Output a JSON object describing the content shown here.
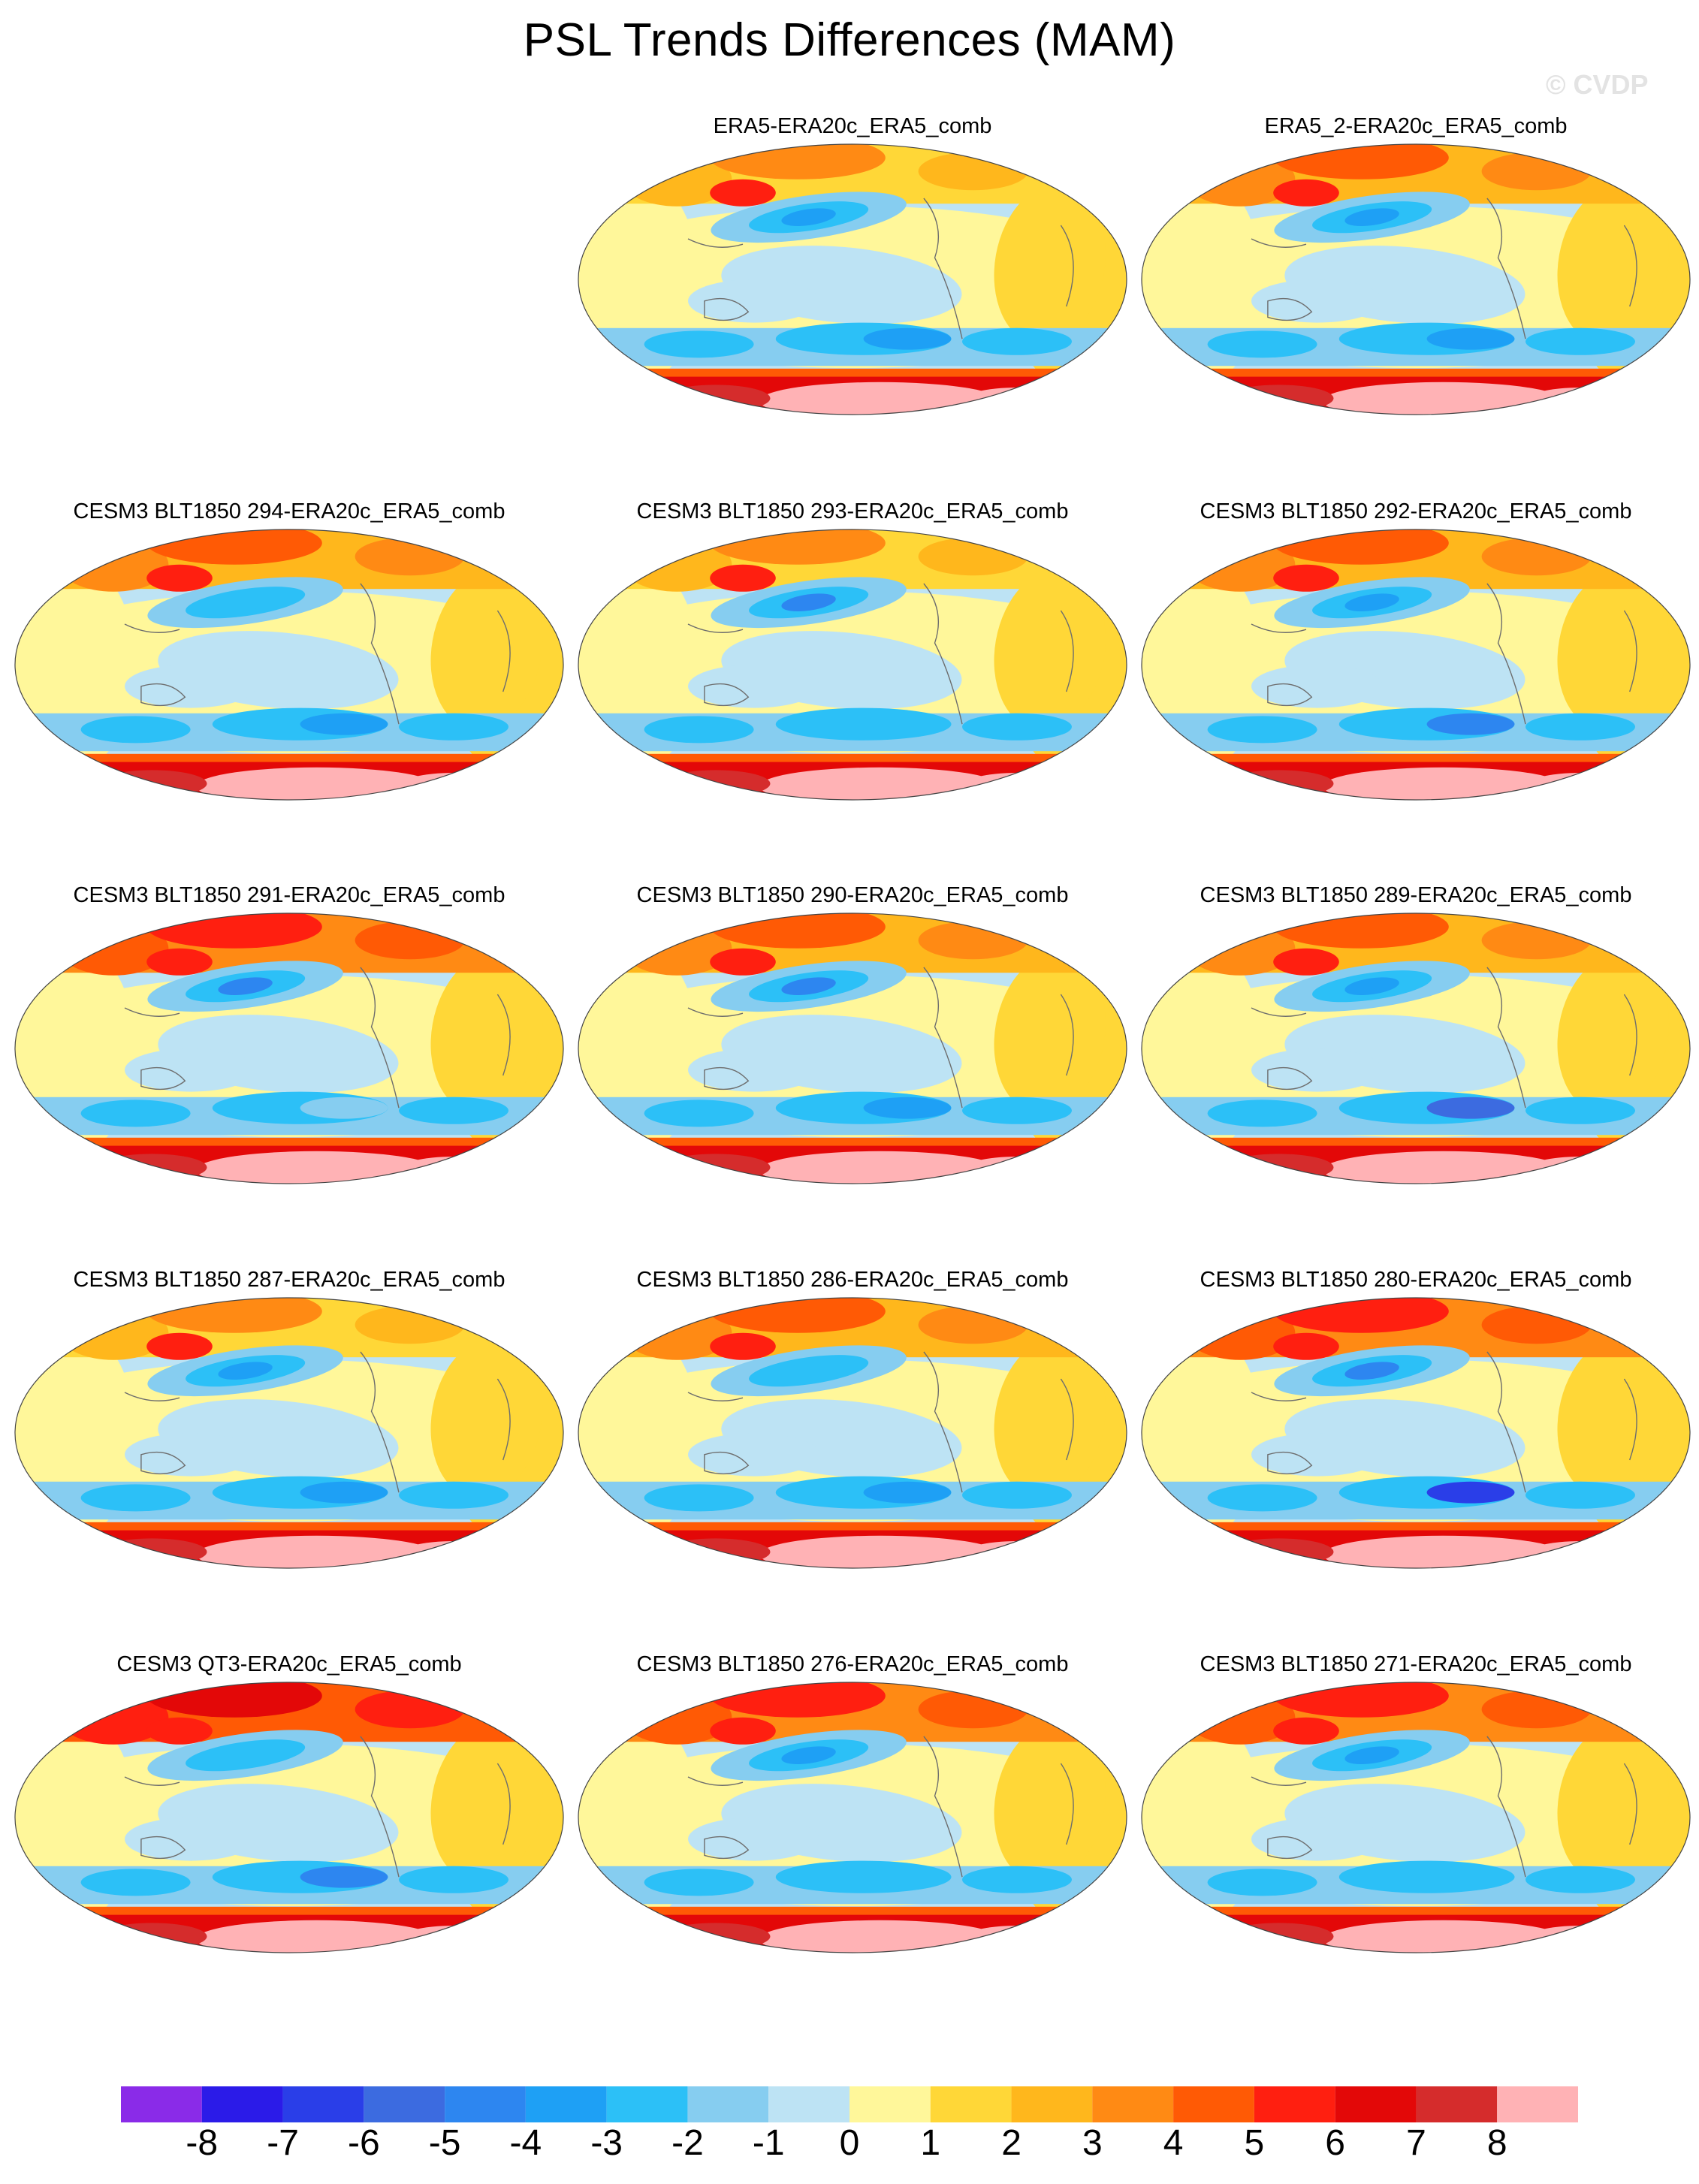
{
  "title": "PSL Trends Differences (MAM)",
  "watermark": "© CVDP",
  "panels": [
    {
      "label": "ERA5-ERA20c_ERA5_comb",
      "row": 0,
      "col": 1,
      "variant": 0
    },
    {
      "label": "ERA5_2-ERA20c_ERA5_comb",
      "row": 0,
      "col": 2,
      "variant": 1
    },
    {
      "label": "CESM3 BLT1850 294-ERA20c_ERA5_comb",
      "row": 1,
      "col": 0,
      "variant": 2
    },
    {
      "label": "CESM3 BLT1850 293-ERA20c_ERA5_comb",
      "row": 1,
      "col": 1,
      "variant": 3
    },
    {
      "label": "CESM3 BLT1850 292-ERA20c_ERA5_comb",
      "row": 1,
      "col": 2,
      "variant": 4
    },
    {
      "label": "CESM3 BLT1850 291-ERA20c_ERA5_comb",
      "row": 2,
      "col": 0,
      "variant": 5
    },
    {
      "label": "CESM3 BLT1850 290-ERA20c_ERA5_comb",
      "row": 2,
      "col": 1,
      "variant": 6
    },
    {
      "label": "CESM3 BLT1850 289-ERA20c_ERA5_comb",
      "row": 2,
      "col": 2,
      "variant": 7
    },
    {
      "label": "CESM3 BLT1850 287-ERA20c_ERA5_comb",
      "row": 3,
      "col": 0,
      "variant": 8
    },
    {
      "label": "CESM3 BLT1850 286-ERA20c_ERA5_comb",
      "row": 3,
      "col": 1,
      "variant": 9
    },
    {
      "label": "CESM3 BLT1850 280-ERA20c_ERA5_comb",
      "row": 3,
      "col": 2,
      "variant": 10
    },
    {
      "label": "CESM3 QT3-ERA20c_ERA5_comb",
      "row": 4,
      "col": 0,
      "variant": 11
    },
    {
      "label": "CESM3 BLT1850 276-ERA20c_ERA5_comb",
      "row": 4,
      "col": 1,
      "variant": 12
    },
    {
      "label": "CESM3 BLT1850 271-ERA20c_ERA5_comb",
      "row": 4,
      "col": 2,
      "variant": 13
    }
  ],
  "colorbar": {
    "ticks": [
      "-8",
      "-7",
      "-6",
      "-5",
      "-4",
      "-3",
      "-2",
      "-1",
      "0",
      "1",
      "2",
      "3",
      "4",
      "5",
      "6",
      "7",
      "8"
    ],
    "colors": [
      "#8a2be8",
      "#2b1be8",
      "#2a3ee8",
      "#3c6be0",
      "#2d86f0",
      "#1ea0f5",
      "#2cc0f7",
      "#86cdf0",
      "#bde3f4",
      "#fff79a",
      "#ffd737",
      "#ffb71c",
      "#ff8a14",
      "#ff5a05",
      "#ff1f10",
      "#e30808",
      "#d52c2c",
      "#ffb2b5"
    ]
  }
}
